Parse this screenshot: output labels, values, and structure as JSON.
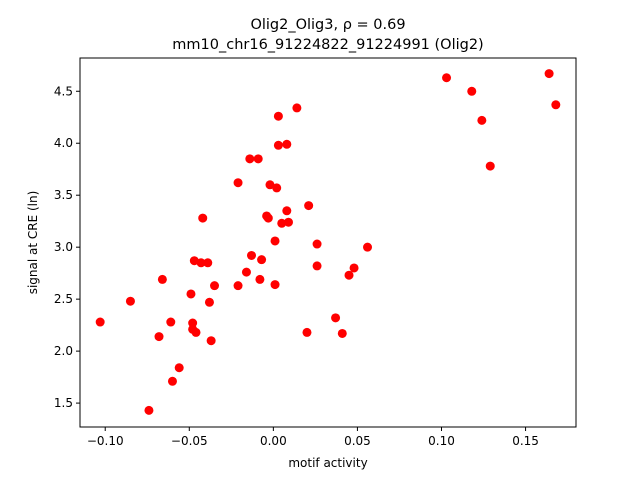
{
  "chart_data": {
    "type": "scatter",
    "title_line1": "Olig2_Olig3, ρ = 0.69",
    "title_line2": "mm10_chr16_91224822_91224991 (Olig2)",
    "xlabel": "motif activity",
    "ylabel": "signal at CRE (ln)",
    "xlim": [
      -0.115,
      0.18
    ],
    "ylim": [
      1.27,
      4.82
    ],
    "xticks": [
      -0.1,
      -0.05,
      0.0,
      0.05,
      0.1,
      0.15
    ],
    "xtick_labels": [
      "−0.10",
      "−0.05",
      "0.00",
      "0.05",
      "0.10",
      "0.15"
    ],
    "yticks": [
      1.5,
      2.0,
      2.5,
      3.0,
      3.5,
      4.0,
      4.5
    ],
    "ytick_labels": [
      "1.5",
      "2.0",
      "2.5",
      "3.0",
      "3.5",
      "4.0",
      "4.5"
    ],
    "grid": false,
    "marker_color": "#ff0000",
    "points": [
      {
        "x": -0.103,
        "y": 2.28
      },
      {
        "x": -0.085,
        "y": 2.48
      },
      {
        "x": -0.074,
        "y": 1.43
      },
      {
        "x": -0.068,
        "y": 2.14
      },
      {
        "x": -0.066,
        "y": 2.69
      },
      {
        "x": -0.061,
        "y": 2.28
      },
      {
        "x": -0.06,
        "y": 1.71
      },
      {
        "x": -0.056,
        "y": 1.84
      },
      {
        "x": -0.049,
        "y": 2.55
      },
      {
        "x": -0.048,
        "y": 2.27
      },
      {
        "x": -0.048,
        "y": 2.21
      },
      {
        "x": -0.047,
        "y": 2.87
      },
      {
        "x": -0.046,
        "y": 2.18
      },
      {
        "x": -0.043,
        "y": 2.85
      },
      {
        "x": -0.042,
        "y": 3.28
      },
      {
        "x": -0.039,
        "y": 2.85
      },
      {
        "x": -0.038,
        "y": 2.47
      },
      {
        "x": -0.037,
        "y": 2.1
      },
      {
        "x": -0.035,
        "y": 2.63
      },
      {
        "x": -0.021,
        "y": 2.63
      },
      {
        "x": -0.021,
        "y": 3.62
      },
      {
        "x": -0.016,
        "y": 2.76
      },
      {
        "x": -0.014,
        "y": 3.85
      },
      {
        "x": -0.013,
        "y": 2.92
      },
      {
        "x": -0.009,
        "y": 3.85
      },
      {
        "x": -0.008,
        "y": 2.69
      },
      {
        "x": -0.007,
        "y": 2.88
      },
      {
        "x": -0.004,
        "y": 3.3
      },
      {
        "x": -0.003,
        "y": 3.28
      },
      {
        "x": -0.002,
        "y": 3.6
      },
      {
        "x": 0.001,
        "y": 2.64
      },
      {
        "x": 0.001,
        "y": 3.06
      },
      {
        "x": 0.002,
        "y": 3.57
      },
      {
        "x": 0.003,
        "y": 3.98
      },
      {
        "x": 0.003,
        "y": 4.26
      },
      {
        "x": 0.005,
        "y": 3.23
      },
      {
        "x": 0.008,
        "y": 3.99
      },
      {
        "x": 0.008,
        "y": 3.35
      },
      {
        "x": 0.009,
        "y": 3.24
      },
      {
        "x": 0.014,
        "y": 4.34
      },
      {
        "x": 0.02,
        "y": 2.18
      },
      {
        "x": 0.021,
        "y": 3.4
      },
      {
        "x": 0.026,
        "y": 3.03
      },
      {
        "x": 0.026,
        "y": 2.82
      },
      {
        "x": 0.037,
        "y": 2.32
      },
      {
        "x": 0.041,
        "y": 2.17
      },
      {
        "x": 0.045,
        "y": 2.73
      },
      {
        "x": 0.048,
        "y": 2.8
      },
      {
        "x": 0.056,
        "y": 3.0
      },
      {
        "x": 0.103,
        "y": 4.63
      },
      {
        "x": 0.118,
        "y": 4.5
      },
      {
        "x": 0.124,
        "y": 4.22
      },
      {
        "x": 0.129,
        "y": 3.78
      },
      {
        "x": 0.164,
        "y": 4.67
      },
      {
        "x": 0.168,
        "y": 4.37
      }
    ]
  }
}
